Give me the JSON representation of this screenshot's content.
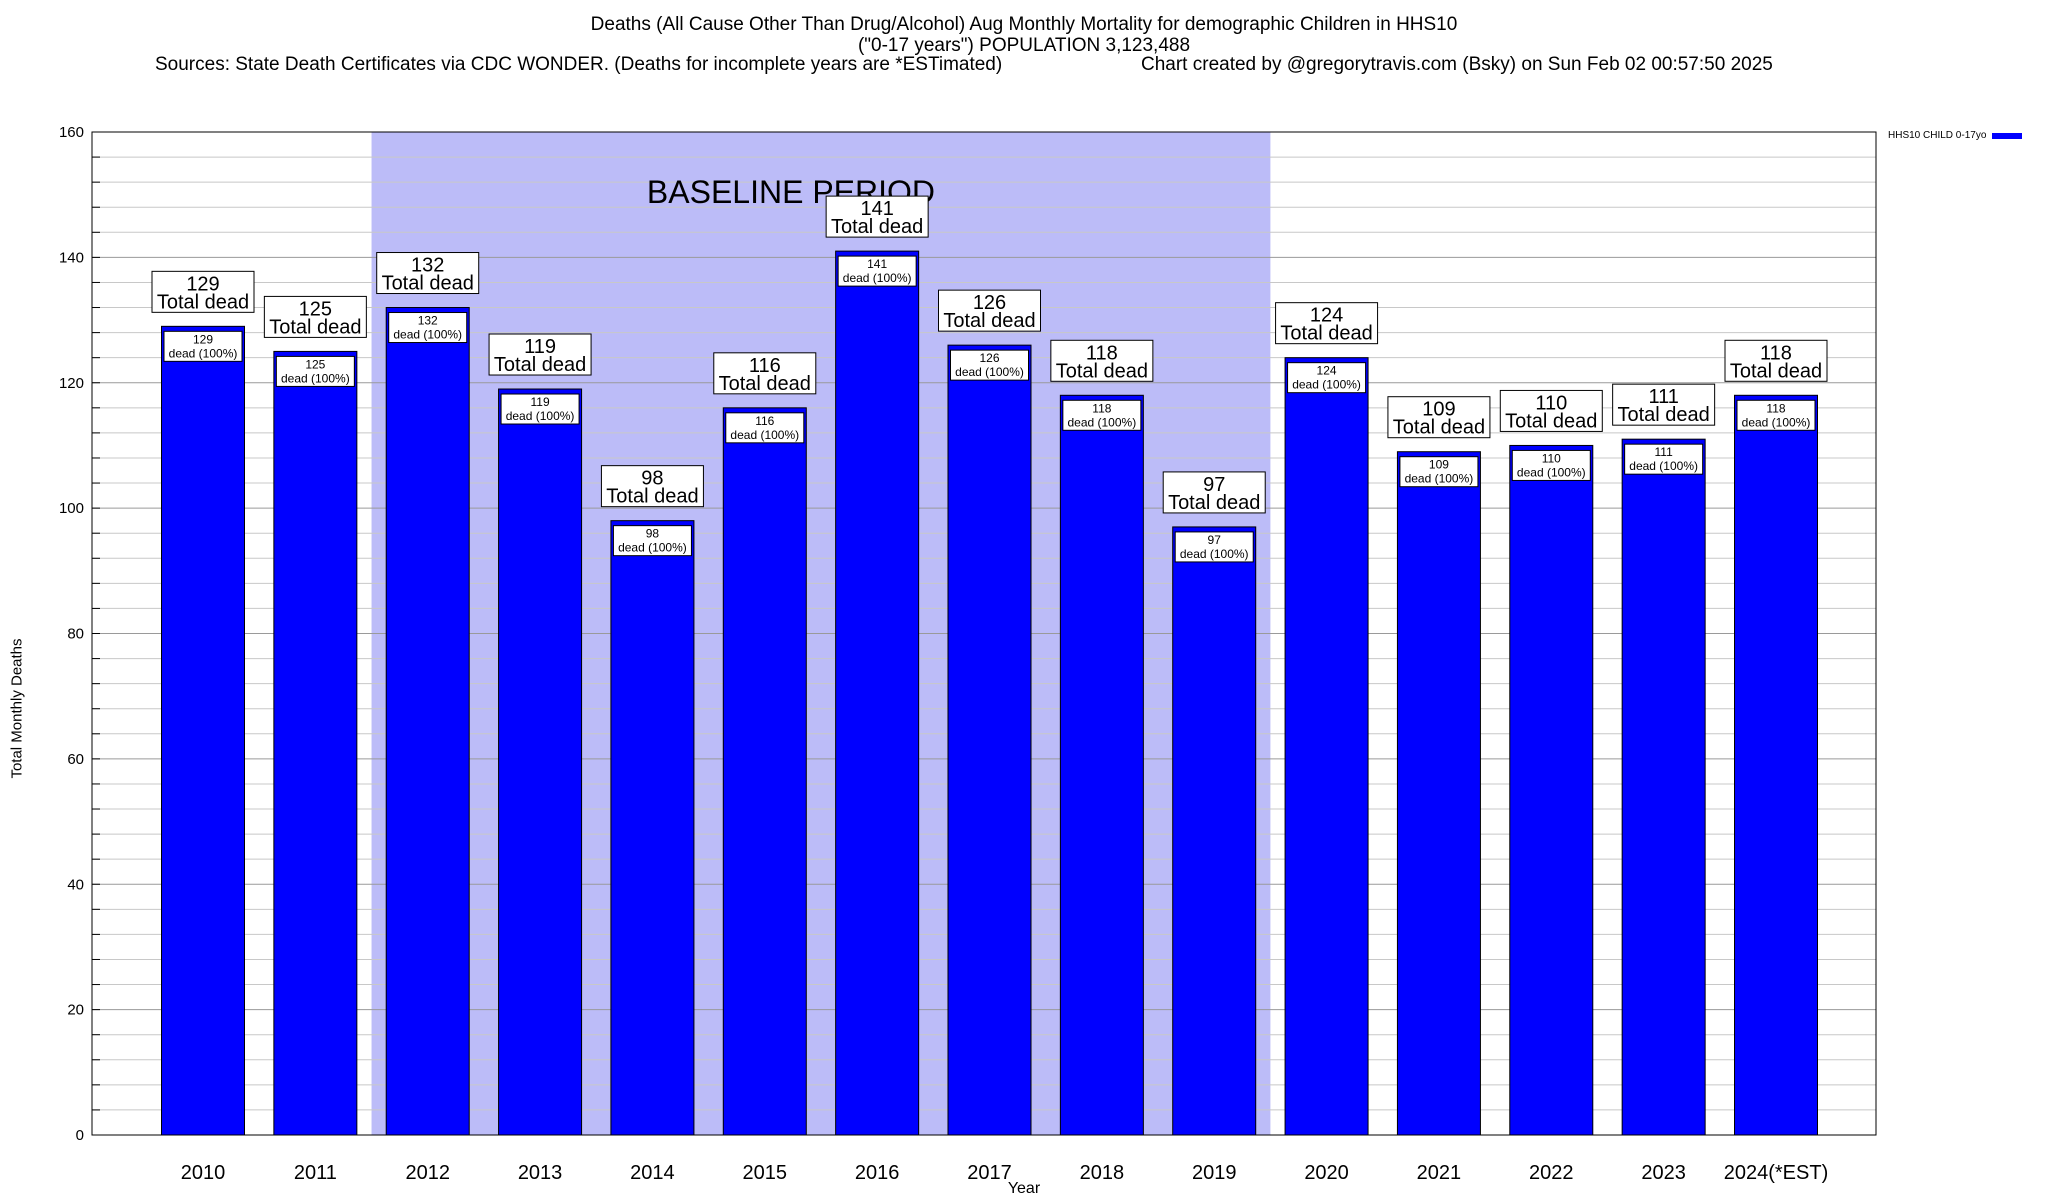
{
  "titles": {
    "line1": "Deaths (All Cause Other Than Drug/Alcohol) Aug Monthly Mortality for demographic Children in HHS10",
    "line2": "(\"0-17 years\") POPULATION 3,123,488",
    "sources": "Sources: State Death Certificates via CDC WONDER. (Deaths for incomplete years are *ESTimated)",
    "credit": "Chart created by @gregorytravis.com (Bsky) on Sun Feb 02 00:57:50 2025"
  },
  "chart_data": {
    "type": "bar",
    "categories": [
      "2010",
      "2011",
      "2012",
      "2013",
      "2014",
      "2015",
      "2016",
      "2017",
      "2018",
      "2019",
      "2020",
      "2021",
      "2022",
      "2023",
      "2024(*EST)"
    ],
    "series": [
      {
        "name": "HHS10 CHILD 0-17yo",
        "color": "#0000ff",
        "values": [
          129,
          125,
          132,
          119,
          98,
          116,
          141,
          126,
          118,
          97,
          124,
          109,
          110,
          111,
          118
        ]
      }
    ],
    "xlabel": "Year",
    "ylabel": "Total Monthly Deaths",
    "ylim": [
      0,
      160
    ],
    "yticks": [
      0,
      20,
      40,
      60,
      80,
      100,
      120,
      140,
      160
    ],
    "grid": true,
    "legend_position": "top-right",
    "annotations": {
      "baseline_label": "BASELINE PERIOD",
      "baseline_range": [
        "2012",
        "2019"
      ],
      "baseline_color": "#bcbcf8",
      "total_suffix": "Total dead",
      "inner_suffix": "dead (100%)"
    }
  }
}
